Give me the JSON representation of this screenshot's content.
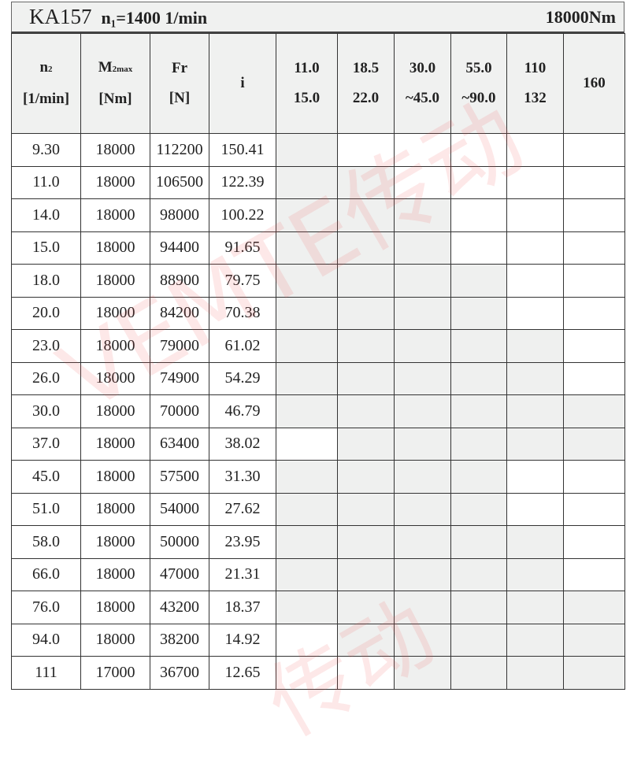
{
  "title": {
    "model": "KA157",
    "speed_label": "n₁=1400 1/min",
    "torque": "18000Nm"
  },
  "headers": {
    "n2": {
      "label": "n",
      "sub": "2",
      "unit": "[1/min]"
    },
    "m2": {
      "label": "M",
      "sub": "2max",
      "unit": "[Nm]"
    },
    "fr": {
      "label": "Fr",
      "unit": "[N]"
    },
    "i": {
      "label": "i"
    },
    "motor_kw": [
      {
        "l1": "11.0",
        "l2": "15.0"
      },
      {
        "l1": "18.5",
        "l2": "22.0"
      },
      {
        "l1": "30.0",
        "l2": "~45.0"
      },
      {
        "l1": "55.0",
        "l2": "~90.0"
      },
      {
        "l1": "110",
        "l2": "132"
      },
      {
        "l1": "160",
        "l2": ""
      }
    ]
  },
  "rows": [
    {
      "n2": "9.30",
      "m2": "18000",
      "fr": "112200",
      "i": "150.41",
      "avail": [
        1,
        0,
        0,
        0,
        0,
        0
      ]
    },
    {
      "n2": "11.0",
      "m2": "18000",
      "fr": "106500",
      "i": "122.39",
      "avail": [
        1,
        1,
        0,
        0,
        0,
        0
      ]
    },
    {
      "n2": "14.0",
      "m2": "18000",
      "fr": "98000",
      "i": "100.22",
      "avail": [
        1,
        1,
        1,
        0,
        0,
        0
      ]
    },
    {
      "n2": "15.0",
      "m2": "18000",
      "fr": "94400",
      "i": "91.65",
      "avail": [
        1,
        1,
        1,
        0,
        0,
        0
      ]
    },
    {
      "n2": "18.0",
      "m2": "18000",
      "fr": "88900",
      "i": "79.75",
      "avail": [
        1,
        1,
        1,
        1,
        0,
        0
      ]
    },
    {
      "n2": "20.0",
      "m2": "18000",
      "fr": "84200",
      "i": "70.38",
      "avail": [
        1,
        1,
        1,
        1,
        0,
        0
      ]
    },
    {
      "n2": "23.0",
      "m2": "18000",
      "fr": "79000",
      "i": "61.02",
      "avail": [
        1,
        1,
        1,
        1,
        1,
        0
      ]
    },
    {
      "n2": "26.0",
      "m2": "18000",
      "fr": "74900",
      "i": "54.29",
      "avail": [
        1,
        1,
        1,
        1,
        1,
        0
      ]
    },
    {
      "n2": "30.0",
      "m2": "18000",
      "fr": "70000",
      "i": "46.79",
      "avail": [
        1,
        1,
        1,
        1,
        1,
        1
      ]
    },
    {
      "n2": "37.0",
      "m2": "18000",
      "fr": "63400",
      "i": "38.02",
      "avail": [
        0,
        1,
        1,
        1,
        1,
        1
      ]
    },
    {
      "n2": "45.0",
      "m2": "18000",
      "fr": "57500",
      "i": "31.30",
      "avail": [
        1,
        1,
        1,
        1,
        0,
        0
      ]
    },
    {
      "n2": "51.0",
      "m2": "18000",
      "fr": "54000",
      "i": "27.62",
      "avail": [
        1,
        1,
        1,
        1,
        0,
        0
      ]
    },
    {
      "n2": "58.0",
      "m2": "18000",
      "fr": "50000",
      "i": "23.95",
      "avail": [
        1,
        1,
        1,
        1,
        1,
        0
      ]
    },
    {
      "n2": "66.0",
      "m2": "18000",
      "fr": "47000",
      "i": "21.31",
      "avail": [
        1,
        1,
        1,
        1,
        1,
        0
      ]
    },
    {
      "n2": "76.0",
      "m2": "18000",
      "fr": "43200",
      "i": "18.37",
      "avail": [
        1,
        1,
        1,
        1,
        1,
        1
      ]
    },
    {
      "n2": "94.0",
      "m2": "18000",
      "fr": "38200",
      "i": "14.92",
      "avail": [
        0,
        1,
        1,
        1,
        1,
        1
      ]
    },
    {
      "n2": "111",
      "m2": "17000",
      "fr": "36700",
      "i": "12.65",
      "avail": [
        0,
        0,
        1,
        1,
        1,
        1
      ]
    }
  ],
  "colors": {
    "shaded": "#eff0ef",
    "header_bg": "#f0f1f0",
    "watermark": "#f05050"
  },
  "watermark": "VEMTE传动"
}
